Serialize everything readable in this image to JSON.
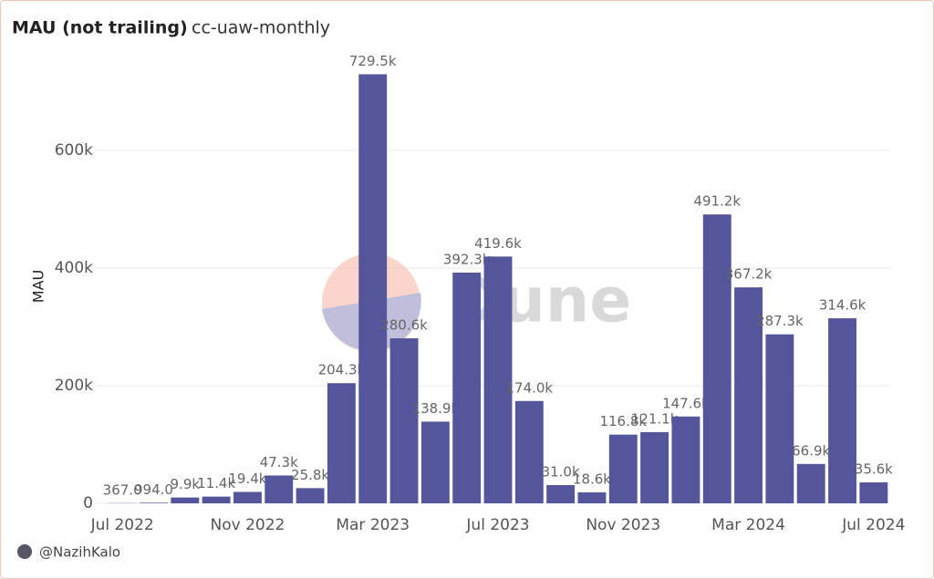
{
  "chart_data": {
    "type": "bar",
    "title": "MAU (not trailing)",
    "subtitle": "cc-uaw-monthly",
    "y_label": "MAU",
    "watermark": "Dune",
    "author": "@NazihKalo",
    "categories": [
      "Jul 2022",
      null,
      null,
      null,
      "Nov 2022",
      null,
      null,
      null,
      "Mar 2023",
      null,
      null,
      null,
      "Jul 2023",
      null,
      null,
      null,
      "Nov 2023",
      null,
      null,
      null,
      "Mar 2024",
      null,
      null,
      null,
      "Jul 2024"
    ],
    "values": [
      367,
      994,
      9900,
      11400,
      19400,
      47300,
      25800,
      204300,
      729500,
      280600,
      138900,
      392300,
      419600,
      174000,
      31000,
      18600,
      116800,
      121100,
      147600,
      491200,
      367200,
      287300,
      66900,
      314600,
      35600
    ],
    "value_labels": [
      "367.0",
      "994.0",
      "9.9k",
      "11.4k",
      "19.4k",
      "47.3k",
      "25.8k",
      "204.3k",
      "729.5k",
      "280.6k",
      "138.9k",
      "392.3k",
      "419.6k",
      "174.0k",
      "31.0k",
      "18.6k",
      "116.8k",
      "121.1k",
      "147.6k",
      "491.2k",
      "367.2k",
      "287.3k",
      "66.9k",
      "314.6k",
      "35.6k"
    ],
    "color": "#55559b",
    "ylim": [
      0,
      800000
    ],
    "yticks": [
      0,
      {
        "value": 200000,
        "label": "200k"
      },
      {
        "value": 400000,
        "label": "400k"
      },
      {
        "value": 600000,
        "label": "600k"
      }
    ],
    "grid": true
  }
}
